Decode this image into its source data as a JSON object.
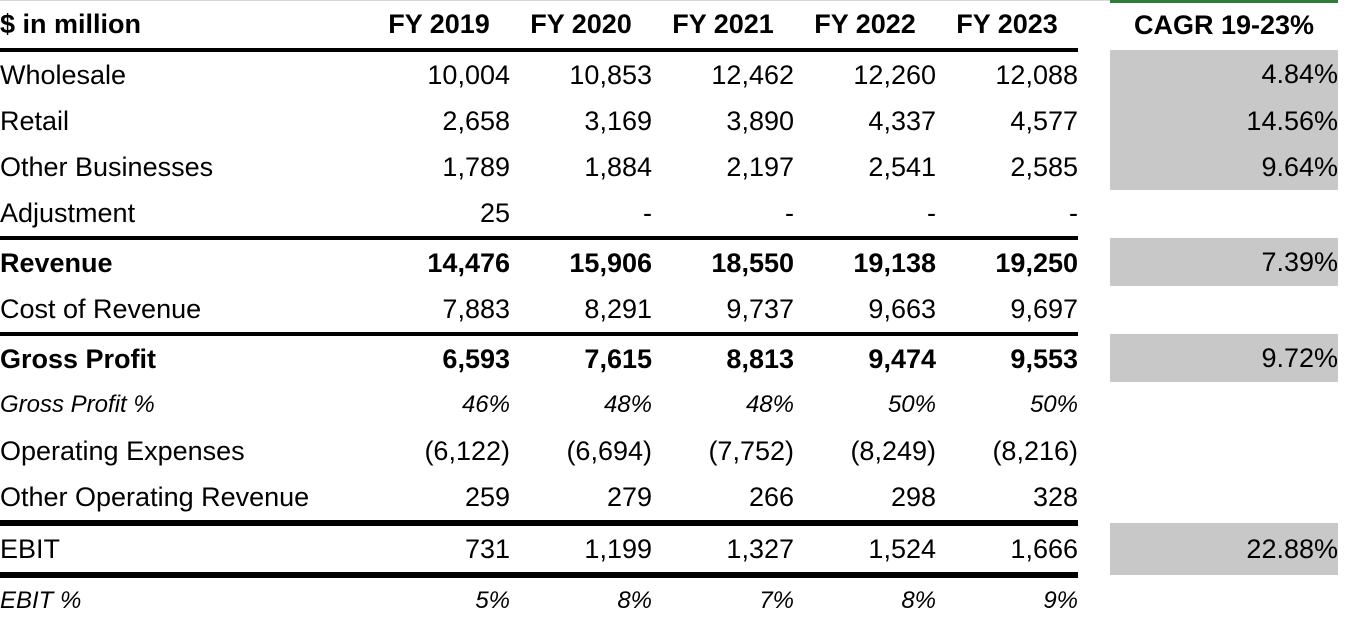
{
  "table": {
    "corner_label": "$ in million",
    "years": [
      "FY 2019",
      "FY 2020",
      "FY 2021",
      "FY 2022",
      "FY 2023"
    ],
    "cagr_header": "CAGR 19-23%",
    "rows": [
      {
        "label": "Wholesale",
        "values": [
          "10,004",
          "10,853",
          "12,462",
          "12,260",
          "12,088"
        ],
        "cagr": "4.84%"
      },
      {
        "label": "Retail",
        "values": [
          "2,658",
          "3,169",
          "3,890",
          "4,337",
          "4,577"
        ],
        "cagr": "14.56%"
      },
      {
        "label": "Other Businesses",
        "values": [
          "1,789",
          "1,884",
          "2,197",
          "2,541",
          "2,585"
        ],
        "cagr": "9.64%"
      },
      {
        "label": "Adjustment",
        "values": [
          "25",
          "-",
          "-",
          "-",
          "-"
        ],
        "cagr": ""
      },
      {
        "label": "Revenue",
        "values": [
          "14,476",
          "15,906",
          "18,550",
          "19,138",
          "19,250"
        ],
        "cagr": "7.39%"
      },
      {
        "label": "Cost of Revenue",
        "values": [
          "7,883",
          "8,291",
          "9,737",
          "9,663",
          "9,697"
        ],
        "cagr": ""
      },
      {
        "label": "Gross Profit",
        "values": [
          "6,593",
          "7,615",
          "8,813",
          "9,474",
          "9,553"
        ],
        "cagr": "9.72%"
      },
      {
        "label": "Gross Profit %",
        "values": [
          "46%",
          "48%",
          "48%",
          "50%",
          "50%"
        ],
        "cagr": ""
      },
      {
        "label": "Operating Expenses",
        "values": [
          "(6,122)",
          "(6,694)",
          "(7,752)",
          "(8,249)",
          "(8,216)"
        ],
        "cagr": ""
      },
      {
        "label": "Other Operating Revenue",
        "values": [
          "259",
          "279",
          "266",
          "298",
          "328"
        ],
        "cagr": ""
      },
      {
        "label": "EBIT",
        "values": [
          "731",
          "1,199",
          "1,327",
          "1,524",
          "1,666"
        ],
        "cagr": "22.88%"
      },
      {
        "label": "EBIT %",
        "values": [
          "5%",
          "8%",
          "7%",
          "8%",
          "9%"
        ],
        "cagr": ""
      }
    ]
  },
  "colors": {
    "cagr_fill": "#c8c8c8",
    "accent": "#2e7d3a"
  }
}
